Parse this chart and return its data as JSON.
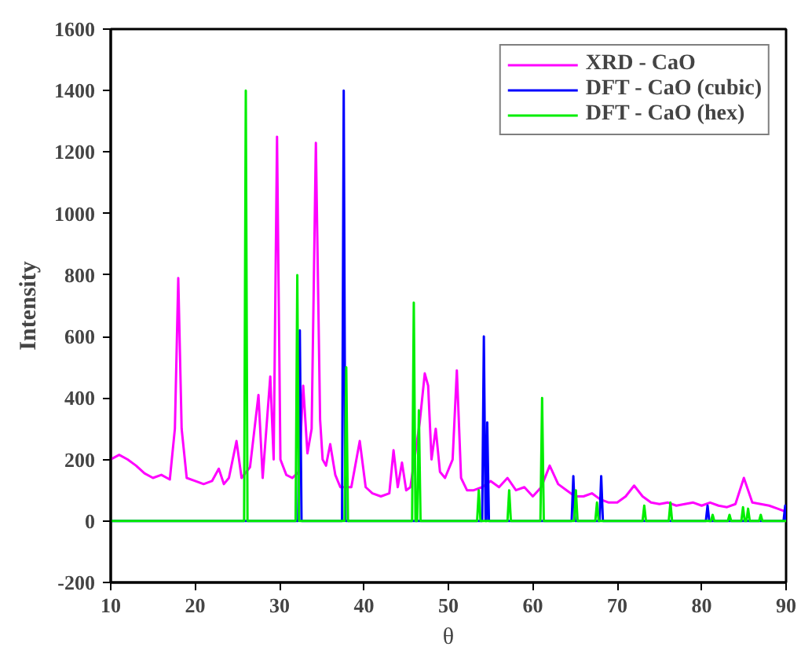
{
  "chart_data": {
    "type": "line",
    "xlabel": "θ",
    "ylabel": "Intensity",
    "xlim": [
      10,
      90
    ],
    "ylim": [
      -200,
      1600
    ],
    "xticks": [
      10,
      20,
      30,
      40,
      50,
      60,
      70,
      80,
      90
    ],
    "yticks": [
      -200,
      0,
      200,
      400,
      600,
      800,
      1000,
      1200,
      1400,
      1600
    ],
    "grid": false,
    "legend": "top right",
    "marker": "none",
    "line_style": "solid",
    "series": [
      {
        "name": "XRD - CaO",
        "color": "#ff00ff",
        "x": [
          10,
          11,
          12,
          13,
          14,
          15,
          16,
          17,
          17.6,
          18,
          18.4,
          19,
          20,
          21,
          22,
          22.8,
          23.4,
          24,
          24.9,
          25.5,
          26.5,
          27.5,
          28,
          28.9,
          29.3,
          29.7,
          30.1,
          30.8,
          31.5,
          32.3,
          32.8,
          33.3,
          33.8,
          34.3,
          34.8,
          35.1,
          35.5,
          36,
          36.6,
          37.2,
          38.5,
          39.5,
          40.2,
          41,
          42,
          43,
          43.5,
          44,
          44.5,
          45,
          45.5,
          46.6,
          47.2,
          47.6,
          48,
          48.5,
          49,
          49.6,
          50.5,
          51,
          51.5,
          52.2,
          53,
          54,
          55,
          56,
          57,
          58,
          59,
          60,
          61,
          62,
          63,
          64,
          65,
          66,
          67,
          68,
          69,
          70,
          71,
          72,
          73,
          74,
          75,
          76,
          77,
          78,
          79,
          80,
          81,
          82,
          83,
          84,
          85,
          86,
          87,
          88,
          89,
          90
        ],
        "values": [
          200,
          215,
          200,
          180,
          155,
          140,
          150,
          135,
          300,
          790,
          300,
          140,
          130,
          120,
          130,
          170,
          120,
          140,
          260,
          140,
          175,
          410,
          140,
          470,
          200,
          1250,
          200,
          150,
          140,
          160,
          440,
          220,
          300,
          1230,
          330,
          200,
          180,
          250,
          150,
          110,
          110,
          260,
          110,
          90,
          80,
          90,
          230,
          110,
          190,
          100,
          110,
          320,
          480,
          440,
          200,
          300,
          160,
          140,
          200,
          490,
          140,
          100,
          100,
          110,
          130,
          110,
          140,
          100,
          110,
          80,
          110,
          180,
          120,
          100,
          80,
          80,
          90,
          70,
          60,
          60,
          80,
          115,
          80,
          60,
          55,
          60,
          50,
          55,
          60,
          50,
          60,
          50,
          45,
          55,
          140,
          60,
          55,
          50,
          40,
          30
        ]
      },
      {
        "name": "DFT - CaO (cubic)",
        "color": "#0000ff",
        "x": [
          10,
          32.2,
          32.4,
          32.6,
          37.4,
          37.6,
          37.8,
          54.0,
          54.2,
          54.4,
          54.5,
          54.6,
          54.8,
          64.6,
          64.8,
          65.0,
          67.9,
          68.1,
          68.3,
          80.5,
          80.7,
          80.9,
          89.7,
          89.9,
          90
        ],
        "values": [
          0,
          0,
          620,
          0,
          0,
          1400,
          0,
          0,
          600,
          0,
          0,
          320,
          0,
          0,
          146,
          0,
          0,
          146,
          0,
          0,
          50,
          0,
          0,
          50,
          0
        ]
      },
      {
        "name": "DFT - CaO (hex)",
        "color": "#00ee00",
        "x": [
          10,
          25.8,
          26.0,
          26.2,
          31.9,
          32.1,
          32.3,
          37.7,
          37.9,
          38.1,
          45.7,
          45.9,
          46.1,
          46.3,
          46.5,
          46.7,
          53.4,
          53.6,
          53.8,
          57.0,
          57.2,
          57.4,
          60.9,
          61.1,
          61.3,
          64.9,
          65.1,
          65.3,
          67.4,
          67.6,
          67.8,
          73.0,
          73.2,
          73.4,
          76.1,
          76.3,
          76.5,
          81.1,
          81.3,
          81.5,
          83.1,
          83.3,
          83.5,
          84.7,
          84.9,
          85.1,
          85.3,
          85.5,
          85.7,
          86.8,
          87.0,
          87.2,
          90
        ],
        "values": [
          0,
          0,
          1400,
          0,
          0,
          800,
          0,
          0,
          500,
          0,
          0,
          710,
          0,
          0,
          360,
          0,
          0,
          100,
          0,
          0,
          100,
          0,
          0,
          400,
          0,
          0,
          100,
          0,
          0,
          60,
          0,
          0,
          50,
          0,
          0,
          60,
          0,
          0,
          20,
          0,
          0,
          20,
          0,
          0,
          45,
          0,
          0,
          40,
          0,
          0,
          20,
          0,
          0
        ]
      }
    ]
  }
}
